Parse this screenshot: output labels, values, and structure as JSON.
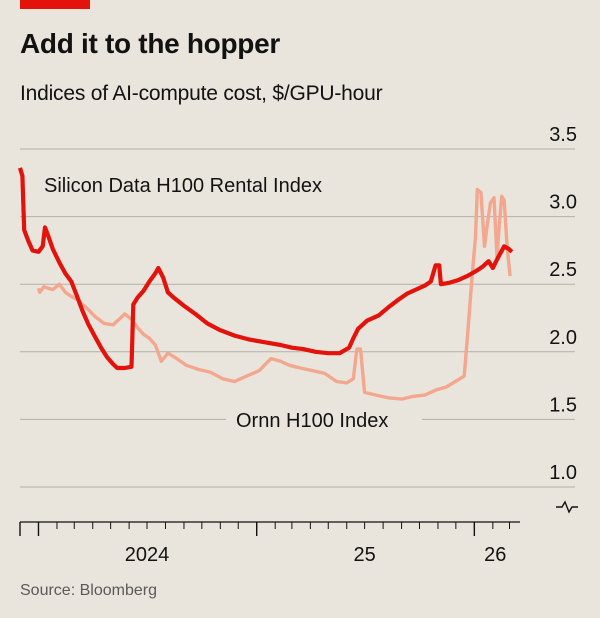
{
  "header": {
    "title": "Add it to the hopper",
    "subtitle": "Indices of AI-compute cost, $/GPU-hour"
  },
  "footer": {
    "source": "Source: Bloomberg"
  },
  "colors": {
    "accent": "#e3120b",
    "silicon": "#e3120b",
    "ornn": "#f3a78e",
    "grid": "#b5b0a6",
    "axis": "#121212",
    "background": "#e9e5dc"
  },
  "chart_data": {
    "type": "line",
    "title": "Add it to the hopper",
    "subtitle": "Indices of AI-compute cost, $/GPU-hour",
    "y_axis": {
      "min": 1.0,
      "max": 3.5,
      "ticks": [
        "3.5",
        "3.0",
        "2.5",
        "2.0",
        "1.5",
        "1.0"
      ],
      "side": "right",
      "broken_axis_marker": true
    },
    "x_axis": {
      "start": "2023-12",
      "end": "2026-04",
      "tick_labels": [
        "2024",
        "25",
        "26"
      ]
    },
    "grid": true,
    "series": [
      {
        "name": "Silicon Data H100 Rental Index",
        "color": "#e3120b",
        "points": [
          [
            "2023-12-01",
            3.36
          ],
          [
            "2023-12-05",
            3.3
          ],
          [
            "2023-12-08",
            2.9
          ],
          [
            "2023-12-15",
            2.82
          ],
          [
            "2023-12-22",
            2.75
          ],
          [
            "2024-01-01",
            2.74
          ],
          [
            "2024-01-08",
            2.78
          ],
          [
            "2024-01-12",
            2.92
          ],
          [
            "2024-01-18",
            2.85
          ],
          [
            "2024-01-25",
            2.76
          ],
          [
            "2024-02-05",
            2.66
          ],
          [
            "2024-02-15",
            2.58
          ],
          [
            "2024-02-25",
            2.52
          ],
          [
            "2024-03-05",
            2.42
          ],
          [
            "2024-03-15",
            2.3
          ],
          [
            "2024-03-25",
            2.2
          ],
          [
            "2024-04-05",
            2.11
          ],
          [
            "2024-04-15",
            2.03
          ],
          [
            "2024-04-25",
            1.96
          ],
          [
            "2024-05-05",
            1.91
          ],
          [
            "2024-05-12",
            1.88
          ],
          [
            "2024-05-25",
            1.88
          ],
          [
            "2024-06-05",
            1.89
          ],
          [
            "2024-06-08",
            2.35
          ],
          [
            "2024-06-15",
            2.4
          ],
          [
            "2024-06-25",
            2.45
          ],
          [
            "2024-07-05",
            2.52
          ],
          [
            "2024-07-15",
            2.58
          ],
          [
            "2024-07-20",
            2.62
          ],
          [
            "2024-07-28",
            2.55
          ],
          [
            "2024-08-05",
            2.44
          ],
          [
            "2024-08-15",
            2.4
          ],
          [
            "2024-09-01",
            2.34
          ],
          [
            "2024-09-20",
            2.28
          ],
          [
            "2024-10-10",
            2.21
          ],
          [
            "2024-11-01",
            2.16
          ],
          [
            "2024-11-25",
            2.12
          ],
          [
            "2024-12-20",
            2.09
          ],
          [
            "2025-01-15",
            2.07
          ],
          [
            "2025-02-10",
            2.05
          ],
          [
            "2025-03-01",
            2.03
          ],
          [
            "2025-03-20",
            2.02
          ],
          [
            "2025-04-10",
            2.0
          ],
          [
            "2025-05-01",
            1.99
          ],
          [
            "2025-05-20",
            1.99
          ],
          [
            "2025-06-05",
            2.03
          ],
          [
            "2025-06-12",
            2.1
          ],
          [
            "2025-06-20",
            2.17
          ],
          [
            "2025-07-05",
            2.23
          ],
          [
            "2025-07-25",
            2.27
          ],
          [
            "2025-08-10",
            2.33
          ],
          [
            "2025-08-25",
            2.38
          ],
          [
            "2025-09-10",
            2.43
          ],
          [
            "2025-09-25",
            2.46
          ],
          [
            "2025-10-10",
            2.49
          ],
          [
            "2025-10-20",
            2.52
          ],
          [
            "2025-10-28",
            2.64
          ],
          [
            "2025-11-03",
            2.64
          ],
          [
            "2025-11-06",
            2.5
          ],
          [
            "2025-11-20",
            2.51
          ],
          [
            "2025-12-05",
            2.53
          ],
          [
            "2025-12-20",
            2.56
          ],
          [
            "2026-01-05",
            2.6
          ],
          [
            "2026-01-15",
            2.63
          ],
          [
            "2026-01-25",
            2.67
          ],
          [
            "2026-02-01",
            2.62
          ],
          [
            "2026-02-10",
            2.7
          ],
          [
            "2026-02-20",
            2.78
          ],
          [
            "2026-02-28",
            2.76
          ],
          [
            "2026-03-05",
            2.74
          ]
        ]
      },
      {
        "name": "Ornn H100 Index",
        "color": "#f3a78e",
        "points": [
          [
            "2024-01-01",
            2.47
          ],
          [
            "2024-01-03",
            2.44
          ],
          [
            "2024-01-10",
            2.48
          ],
          [
            "2024-01-25",
            2.46
          ],
          [
            "2024-02-05",
            2.5
          ],
          [
            "2024-02-15",
            2.44
          ],
          [
            "2024-02-25",
            2.41
          ],
          [
            "2024-03-05",
            2.39
          ],
          [
            "2024-03-15",
            2.35
          ],
          [
            "2024-03-25",
            2.31
          ],
          [
            "2024-04-05",
            2.26
          ],
          [
            "2024-04-20",
            2.21
          ],
          [
            "2024-05-05",
            2.2
          ],
          [
            "2024-05-15",
            2.24
          ],
          [
            "2024-05-25",
            2.28
          ],
          [
            "2024-06-05",
            2.24
          ],
          [
            "2024-06-15",
            2.18
          ],
          [
            "2024-06-25",
            2.13
          ],
          [
            "2024-07-05",
            2.1
          ],
          [
            "2024-07-15",
            2.05
          ],
          [
            "2024-07-25",
            1.93
          ],
          [
            "2024-08-05",
            1.99
          ],
          [
            "2024-08-20",
            1.95
          ],
          [
            "2024-09-05",
            1.9
          ],
          [
            "2024-09-25",
            1.87
          ],
          [
            "2024-10-15",
            1.85
          ],
          [
            "2024-11-05",
            1.8
          ],
          [
            "2024-11-25",
            1.78
          ],
          [
            "2024-12-15",
            1.82
          ],
          [
            "2025-01-05",
            1.86
          ],
          [
            "2025-01-25",
            1.95
          ],
          [
            "2025-02-10",
            1.93
          ],
          [
            "2025-02-25",
            1.9
          ],
          [
            "2025-03-15",
            1.88
          ],
          [
            "2025-04-05",
            1.86
          ],
          [
            "2025-04-25",
            1.84
          ],
          [
            "2025-05-15",
            1.78
          ],
          [
            "2025-06-01",
            1.77
          ],
          [
            "2025-06-12",
            1.8
          ],
          [
            "2025-06-18",
            2.02
          ],
          [
            "2025-06-24",
            2.02
          ],
          [
            "2025-07-01",
            1.7
          ],
          [
            "2025-07-20",
            1.68
          ],
          [
            "2025-08-10",
            1.66
          ],
          [
            "2025-09-01",
            1.65
          ],
          [
            "2025-09-20",
            1.67
          ],
          [
            "2025-10-10",
            1.68
          ],
          [
            "2025-10-30",
            1.72
          ],
          [
            "2025-11-15",
            1.74
          ],
          [
            "2025-11-30",
            1.78
          ],
          [
            "2025-12-15",
            1.82
          ],
          [
            "2025-12-22",
            2.2
          ],
          [
            "2025-12-28",
            2.55
          ],
          [
            "2026-01-03",
            2.85
          ],
          [
            "2026-01-06",
            3.2
          ],
          [
            "2026-01-12",
            3.18
          ],
          [
            "2026-01-18",
            2.78
          ],
          [
            "2026-01-22",
            2.92
          ],
          [
            "2026-01-28",
            3.1
          ],
          [
            "2026-02-03",
            3.14
          ],
          [
            "2026-02-08",
            2.7
          ],
          [
            "2026-02-12",
            2.95
          ],
          [
            "2026-02-16",
            3.15
          ],
          [
            "2026-02-20",
            3.12
          ],
          [
            "2026-02-25",
            2.78
          ],
          [
            "2026-03-02",
            2.56
          ]
        ]
      }
    ]
  }
}
